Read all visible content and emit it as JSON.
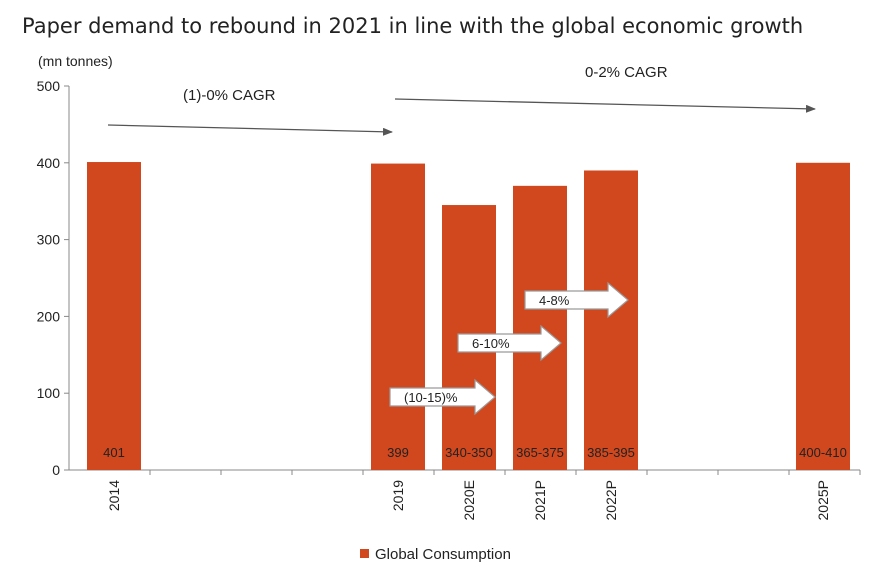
{
  "title": "Paper demand to rebound in 2021 in line with the global economic growth",
  "colors": {
    "bar": "#d1481f",
    "axis": "#888888",
    "arrow": "#555555",
    "growth_arrow_stroke": "#9a9a9a"
  },
  "chart_data": {
    "type": "bar",
    "unit_label": "(mn tonnes)",
    "categories": [
      "2014",
      "2019",
      "2020E",
      "2021P",
      "2022P",
      "2025P"
    ],
    "series": [
      {
        "name": "Global Consumption",
        "values": [
          401,
          399,
          345,
          370,
          390,
          400
        ],
        "labels": [
          "401",
          "399",
          "340-350",
          "365-375",
          "385-395",
          "400-410"
        ]
      }
    ],
    "ylim": [
      0,
      500
    ],
    "yticks": [
      0,
      100,
      200,
      300,
      400,
      500
    ],
    "grid": false,
    "legend_position": "bottom",
    "annotations": {
      "cagr": [
        "(1)-0%  CAGR",
        "0-2% CAGR"
      ],
      "growth": [
        "(10-15)%",
        "6-10%",
        "4-8%"
      ]
    }
  }
}
